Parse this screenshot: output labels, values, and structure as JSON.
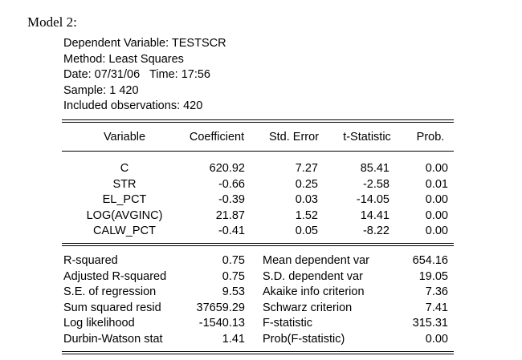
{
  "model_title": "Model 2:",
  "header": {
    "dependent": "Dependent Variable: TESTSCR",
    "method": "Method: Least Squares",
    "datetime": "Date: 07/31/06   Time: 17:56",
    "sample": "Sample: 1 420",
    "observations": "Included observations: 420"
  },
  "coef_table": {
    "columns": [
      "Variable",
      "Coefficient",
      "Std. Error",
      "t-Statistic",
      "Prob."
    ],
    "rows": [
      {
        "variable": "C",
        "coefficient": "620.92",
        "std_error": "7.27",
        "t_stat": "85.41",
        "prob": "0.00"
      },
      {
        "variable": "STR",
        "coefficient": "-0.66",
        "std_error": "0.25",
        "t_stat": "-2.58",
        "prob": "0.01"
      },
      {
        "variable": "EL_PCT",
        "coefficient": "-0.39",
        "std_error": "0.03",
        "t_stat": "-14.05",
        "prob": "0.00"
      },
      {
        "variable": "LOG(AVGINC)",
        "coefficient": "21.87",
        "std_error": "1.52",
        "t_stat": "14.41",
        "prob": "0.00"
      },
      {
        "variable": "CALW_PCT",
        "coefficient": "-0.41",
        "std_error": "0.05",
        "t_stat": "-8.22",
        "prob": "0.00"
      }
    ]
  },
  "stats": [
    {
      "left_label": "R-squared",
      "left_value": "0.75",
      "right_label": "Mean dependent var",
      "right_value": "654.16"
    },
    {
      "left_label": "Adjusted R-squared",
      "left_value": "0.75",
      "right_label": "S.D. dependent var",
      "right_value": "19.05"
    },
    {
      "left_label": "S.E. of regression",
      "left_value": "9.53",
      "right_label": "Akaike info criterion",
      "right_value": "7.36"
    },
    {
      "left_label": "Sum squared resid",
      "left_value": "37659.29",
      "right_label": "Schwarz criterion",
      "right_value": "7.41"
    },
    {
      "left_label": "Log likelihood",
      "left_value": "-1540.13",
      "right_label": "F-statistic",
      "right_value": "315.31"
    },
    {
      "left_label": "Durbin-Watson stat",
      "left_value": "1.41",
      "right_label": "Prob(F-statistic)",
      "right_value": "0.00"
    }
  ]
}
